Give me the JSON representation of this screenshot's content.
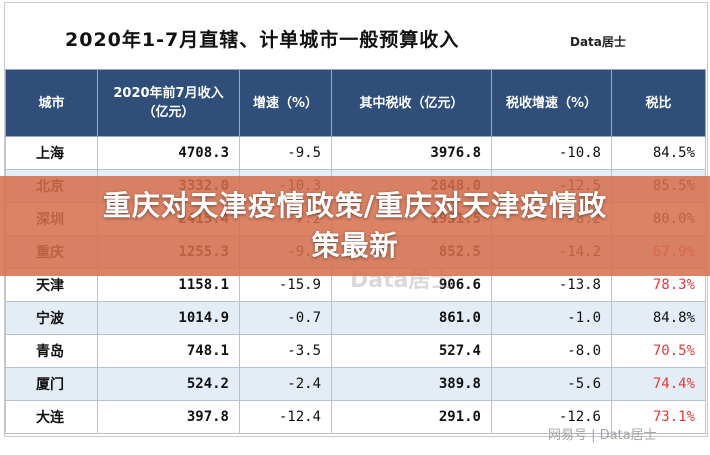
{
  "title": "2020年1-7月直辖、计单城市一般预算收入",
  "brand": "Data居士",
  "headers": [
    "城市",
    "2020年前7月收入\n（亿元）",
    "增速（%）",
    "其中税收（亿元）",
    "税收增速（%）",
    "税比"
  ],
  "rows": [
    {
      "city": "上海",
      "income": "4708.3",
      "growth": "-9.5",
      "tax": "3976.8",
      "tax_growth": "-10.8",
      "ratio": "84.5%",
      "ratio_color": "#111111"
    },
    {
      "city": "北京",
      "income": "3332.0",
      "growth": "-10.3",
      "tax": "2848.0",
      "tax_growth": "-12.5",
      "ratio": "85.5%",
      "ratio_color": "#111111"
    },
    {
      "city": "深圳",
      "income": "2415.4",
      "growth": "-7.2",
      "tax": "1931.5",
      "tax_growth": "-8.2",
      "ratio": "80.0%",
      "ratio_color": "#111111"
    },
    {
      "city": "重庆",
      "income": "1255.3",
      "growth": "-9.7",
      "tax": "852.5",
      "tax_growth": "-14.2",
      "ratio": "67.9%",
      "ratio_color": "#e23b3b"
    },
    {
      "city": "天津",
      "income": "1158.1",
      "growth": "-15.9",
      "tax": "906.6",
      "tax_growth": "-13.8",
      "ratio": "78.3%",
      "ratio_color": "#e23b3b"
    },
    {
      "city": "宁波",
      "income": "1014.9",
      "growth": "-0.7",
      "tax": "861.0",
      "tax_growth": "-1.0",
      "ratio": "84.8%",
      "ratio_color": "#111111"
    },
    {
      "city": "青岛",
      "income": "748.1",
      "growth": "-3.5",
      "tax": "527.4",
      "tax_growth": "-8.0",
      "ratio": "70.5%",
      "ratio_color": "#e23b3b"
    },
    {
      "city": "厦门",
      "income": "524.2",
      "growth": "-2.4",
      "tax": "389.8",
      "tax_growth": "-5.6",
      "ratio": "74.4%",
      "ratio_color": "#e23b3b"
    },
    {
      "city": "大连",
      "income": "397.8",
      "growth": "-12.4",
      "tax": "291.0",
      "tax_growth": "-12.6",
      "ratio": "73.1%",
      "ratio_color": "#e23b3b"
    }
  ],
  "banner": {
    "line1": "重庆对天津疫情政策/重庆对天津疫情政",
    "line2": "策最新"
  },
  "watermark_center": "Data居士",
  "watermark_bottom": "网易号 | Data居士",
  "colors": {
    "header_bg": "#2f4f7a",
    "alt_row": "#e4ecf6",
    "banner": "#d66e4c"
  }
}
